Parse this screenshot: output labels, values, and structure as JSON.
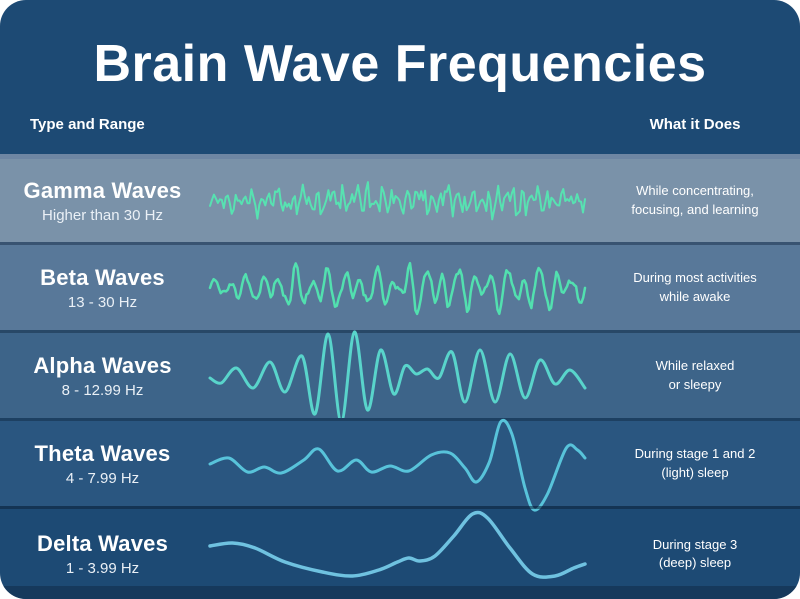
{
  "panel": {
    "title": "Brain Wave Frequencies",
    "header": {
      "left": "Type and Range",
      "right": "What it Does"
    }
  },
  "colors": {
    "page_background": "#FFFFFF",
    "panel_background": "#1D4A74",
    "bottom_strip": "#16395C",
    "header_text": "#FFFFFF",
    "separator_light": "#6E86A3"
  },
  "rows": [
    {
      "name": "Gamma Waves",
      "range": "Higher than 30 Hz",
      "does": "While concentrating,\nfocusing, and learning",
      "bg": "#7A92A9",
      "wave_color": "#57E2B1",
      "stroke_width": 2,
      "wave": {
        "kind": "noise",
        "points": 190,
        "seed": 7,
        "noise": 5,
        "cycles": [
          [
            46,
            7
          ],
          [
            29,
            5
          ],
          [
            77,
            4
          ],
          [
            13,
            3
          ]
        ],
        "env": [
          [
            0,
            0.35
          ],
          [
            0.08,
            0.9
          ],
          [
            0.18,
            0.75
          ],
          [
            0.3,
            1.0
          ],
          [
            0.42,
            1.35
          ],
          [
            0.52,
            0.9
          ],
          [
            0.62,
            1.2
          ],
          [
            0.72,
            0.95
          ],
          [
            0.82,
            1.25
          ],
          [
            0.92,
            0.7
          ],
          [
            1,
            0.55
          ]
        ]
      }
    },
    {
      "name": "Beta Waves",
      "range": "13 - 30 Hz",
      "does": "During most activities\nwhile awake",
      "bg": "#587899",
      "wave_color": "#52E0AF",
      "stroke_width": 2.5,
      "wave": {
        "kind": "noise",
        "points": 210,
        "seed": 11,
        "noise": 3,
        "cycles": [
          [
            23,
            13
          ],
          [
            14,
            7
          ],
          [
            36,
            4
          ]
        ],
        "env": [
          [
            0,
            0.35
          ],
          [
            0.12,
            0.75
          ],
          [
            0.25,
            1.1
          ],
          [
            0.4,
            0.85
          ],
          [
            0.55,
            1.25
          ],
          [
            0.7,
            1.0
          ],
          [
            0.85,
            1.15
          ],
          [
            1,
            0.8
          ]
        ]
      }
    },
    {
      "name": "Alpha Waves",
      "range": "8 - 12.99 Hz",
      "does": "While relaxed\nor sleepy",
      "bg": "#3D6489",
      "wave_color": "#59D4CB",
      "stroke_width": 3,
      "wave": {
        "kind": "points",
        "pts": [
          [
            0,
            -2
          ],
          [
            0.03,
            -7
          ],
          [
            0.07,
            8
          ],
          [
            0.115,
            -12
          ],
          [
            0.16,
            14
          ],
          [
            0.2,
            -16
          ],
          [
            0.245,
            20
          ],
          [
            0.28,
            -38
          ],
          [
            0.315,
            42
          ],
          [
            0.35,
            -46
          ],
          [
            0.385,
            44
          ],
          [
            0.42,
            -34
          ],
          [
            0.455,
            26
          ],
          [
            0.49,
            -18
          ],
          [
            0.52,
            10
          ],
          [
            0.55,
            2
          ],
          [
            0.58,
            7
          ],
          [
            0.61,
            -2
          ],
          [
            0.645,
            24
          ],
          [
            0.68,
            -26
          ],
          [
            0.72,
            26
          ],
          [
            0.76,
            -26
          ],
          [
            0.8,
            22
          ],
          [
            0.84,
            -22
          ],
          [
            0.88,
            16
          ],
          [
            0.92,
            -8
          ],
          [
            0.96,
            6
          ],
          [
            1,
            -12
          ]
        ]
      }
    },
    {
      "name": "Theta Waves",
      "range": "4 - 7.99 Hz",
      "does": "During stage 1 and 2\n(light) sleep",
      "bg": "#2A5680",
      "wave_color": "#58C3DA",
      "stroke_width": 3,
      "wave": {
        "kind": "points",
        "pts": [
          [
            0,
            0
          ],
          [
            0.05,
            6
          ],
          [
            0.1,
            -8
          ],
          [
            0.145,
            -3
          ],
          [
            0.19,
            -9
          ],
          [
            0.25,
            4
          ],
          [
            0.29,
            15
          ],
          [
            0.34,
            -7
          ],
          [
            0.39,
            4
          ],
          [
            0.43,
            -8
          ],
          [
            0.48,
            -2
          ],
          [
            0.53,
            -7
          ],
          [
            0.59,
            9
          ],
          [
            0.64,
            11
          ],
          [
            0.68,
            -4
          ],
          [
            0.71,
            -18
          ],
          [
            0.745,
            2
          ],
          [
            0.775,
            42
          ],
          [
            0.805,
            30
          ],
          [
            0.84,
            -24
          ],
          [
            0.865,
            -46
          ],
          [
            0.9,
            -30
          ],
          [
            0.95,
            16
          ],
          [
            0.98,
            14
          ],
          [
            1,
            6
          ]
        ]
      }
    },
    {
      "name": "Delta Waves",
      "range": "1 - 3.99 Hz",
      "does": "During stage 3\n(deep) sleep",
      "bg": "",
      "wave_color": "#6FC2E0",
      "stroke_width": 3.5,
      "wave": {
        "kind": "points",
        "pts": [
          [
            0,
            8
          ],
          [
            0.06,
            11
          ],
          [
            0.12,
            6
          ],
          [
            0.2,
            -8
          ],
          [
            0.3,
            -18
          ],
          [
            0.38,
            -22
          ],
          [
            0.45,
            -16
          ],
          [
            0.5,
            -8
          ],
          [
            0.53,
            -4
          ],
          [
            0.56,
            -7
          ],
          [
            0.6,
            -2
          ],
          [
            0.65,
            18
          ],
          [
            0.7,
            40
          ],
          [
            0.74,
            36
          ],
          [
            0.8,
            6
          ],
          [
            0.86,
            -20
          ],
          [
            0.92,
            -22
          ],
          [
            0.97,
            -14
          ],
          [
            1,
            -10
          ]
        ]
      }
    }
  ]
}
